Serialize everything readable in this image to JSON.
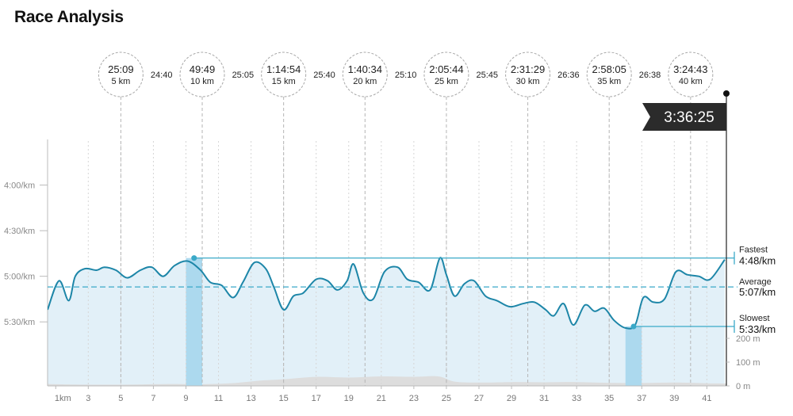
{
  "page": {
    "title": "Race Analysis"
  },
  "chart_data": {
    "type": "line",
    "x_range": [
      0.5,
      42.2
    ],
    "x_ticks": [
      {
        "value": 1,
        "label": "1km"
      },
      {
        "value": 3,
        "label": "3"
      },
      {
        "value": 5,
        "label": "5"
      },
      {
        "value": 7,
        "label": "7"
      },
      {
        "value": 9,
        "label": "9"
      },
      {
        "value": 11,
        "label": "11"
      },
      {
        "value": 13,
        "label": "13"
      },
      {
        "value": 15,
        "label": "15"
      },
      {
        "value": 17,
        "label": "17"
      },
      {
        "value": 19,
        "label": "19"
      },
      {
        "value": 21,
        "label": "21"
      },
      {
        "value": 23,
        "label": "23"
      },
      {
        "value": 25,
        "label": "25"
      },
      {
        "value": 27,
        "label": "27"
      },
      {
        "value": 29,
        "label": "29"
      },
      {
        "value": 31,
        "label": "31"
      },
      {
        "value": 33,
        "label": "33"
      },
      {
        "value": 35,
        "label": "35"
      },
      {
        "value": 37,
        "label": "37"
      },
      {
        "value": 39,
        "label": "39"
      },
      {
        "value": 41,
        "label": "41"
      }
    ],
    "pace_axis": {
      "unit": "sec/km",
      "range_top": 210,
      "range_bottom": 345,
      "ticks": [
        {
          "value": 240,
          "label": "4:00/km"
        },
        {
          "value": 270,
          "label": "4:30/km"
        },
        {
          "value": 300,
          "label": "5:00/km"
        },
        {
          "value": 330,
          "label": "5:30/km"
        }
      ]
    },
    "elevation_axis": {
      "unit": "m",
      "range": [
        0,
        290
      ],
      "ticks": [
        {
          "value": 0,
          "label": "0 m"
        },
        {
          "value": 100,
          "label": "100 m"
        },
        {
          "value": 200,
          "label": "200 m"
        }
      ]
    },
    "pace_series": {
      "name": "Pace",
      "color": "#1d86a8",
      "x": [
        0.5,
        1.2,
        1.8,
        2.2,
        2.8,
        3.5,
        4.0,
        4.7,
        5.4,
        6.2,
        6.9,
        7.6,
        8.3,
        9.1,
        9.9,
        10.5,
        11.2,
        11.9,
        12.5,
        13.2,
        13.9,
        14.4,
        15.0,
        15.6,
        16.2,
        17.0,
        17.7,
        18.3,
        18.9,
        19.3,
        19.9,
        20.5,
        21.2,
        22.0,
        22.6,
        23.3,
        24.0,
        24.6,
        25.0,
        25.5,
        26.1,
        26.7,
        27.4,
        28.1,
        28.9,
        29.7,
        30.4,
        31.1,
        31.6,
        32.2,
        32.8,
        33.5,
        34.1,
        34.7,
        35.3,
        36.0,
        36.6,
        37.1,
        37.7,
        38.4,
        39.1,
        39.8,
        40.5,
        41.2,
        42.1
      ],
      "values": [
        322,
        303,
        316,
        300,
        295,
        296,
        294,
        296,
        301,
        296,
        294,
        300,
        293,
        290,
        296,
        304,
        306,
        314,
        304,
        291,
        295,
        307,
        322,
        313,
        311,
        302,
        303,
        309,
        303,
        292,
        311,
        315,
        297,
        294,
        302,
        304,
        309,
        288,
        299,
        313,
        305,
        303,
        313,
        316,
        320,
        318,
        317,
        322,
        326,
        318,
        332,
        319,
        323,
        321,
        329,
        334,
        332,
        314,
        317,
        315,
        297,
        299,
        300,
        302,
        289
      ]
    },
    "elevation_series": {
      "name": "Elevation",
      "color": "#dddddd",
      "x": [
        0.5,
        2.0,
        4.0,
        6.0,
        8.0,
        10.0,
        12.0,
        13.5,
        15.0,
        17.0,
        19.0,
        21.0,
        23.0,
        24.5,
        25.5,
        27.0,
        29.0,
        31.0,
        33.0,
        35.0,
        37.0,
        39.0,
        41.0,
        42.2
      ],
      "values": [
        8,
        6,
        5,
        6,
        8,
        7,
        12,
        22,
        28,
        38,
        35,
        40,
        38,
        40,
        18,
        14,
        16,
        15,
        16,
        13,
        12,
        14,
        11,
        10
      ]
    },
    "reference_lines": [
      {
        "name": "Fastest",
        "label": "Fastest",
        "value_label": "4:48/km",
        "pace": 288,
        "x": 9.5,
        "style": "solid"
      },
      {
        "name": "Average",
        "label": "Average",
        "value_label": "5:07/km",
        "pace": 307,
        "style": "dashed"
      },
      {
        "name": "Slowest",
        "label": "Slowest",
        "value_label": "5:33/km",
        "pace": 333,
        "x": 36.5,
        "style": "solid"
      }
    ],
    "highlight_bands": [
      {
        "name": "fastest-km",
        "x0": 9.0,
        "x1": 10.0
      },
      {
        "name": "slowest-km",
        "x0": 36.0,
        "x1": 37.0
      }
    ],
    "checkpoints": [
      {
        "km": 5,
        "time": "25:09",
        "distance": "5 km"
      },
      {
        "km": 10,
        "time": "49:49",
        "distance": "10 km"
      },
      {
        "km": 15,
        "time": "1:14:54",
        "distance": "15 km"
      },
      {
        "km": 20,
        "time": "1:40:34",
        "distance": "20 km"
      },
      {
        "km": 25,
        "time": "2:05:44",
        "distance": "25 km"
      },
      {
        "km": 30,
        "time": "2:31:29",
        "distance": "30 km"
      },
      {
        "km": 35,
        "time": "2:58:05",
        "distance": "35 km"
      },
      {
        "km": 40,
        "time": "3:24:43",
        "distance": "40 km"
      }
    ],
    "splits": [
      {
        "km": 7.5,
        "time": "24:40"
      },
      {
        "km": 12.5,
        "time": "25:05"
      },
      {
        "km": 17.5,
        "time": "25:40"
      },
      {
        "km": 22.5,
        "time": "25:10"
      },
      {
        "km": 27.5,
        "time": "25:45"
      },
      {
        "km": 32.5,
        "time": "26:36"
      },
      {
        "km": 37.5,
        "time": "26:38"
      }
    ],
    "finish": {
      "km": 42.2,
      "time": "3:36:25"
    },
    "colors": {
      "line": "#1d86a8",
      "reference": "#3aa9c8",
      "fill": "#e2f0f8",
      "band": "#acd9ee",
      "grid": "#c9c9c9",
      "axis": "#bbbbbb",
      "flag": "#2b2b2b"
    }
  }
}
